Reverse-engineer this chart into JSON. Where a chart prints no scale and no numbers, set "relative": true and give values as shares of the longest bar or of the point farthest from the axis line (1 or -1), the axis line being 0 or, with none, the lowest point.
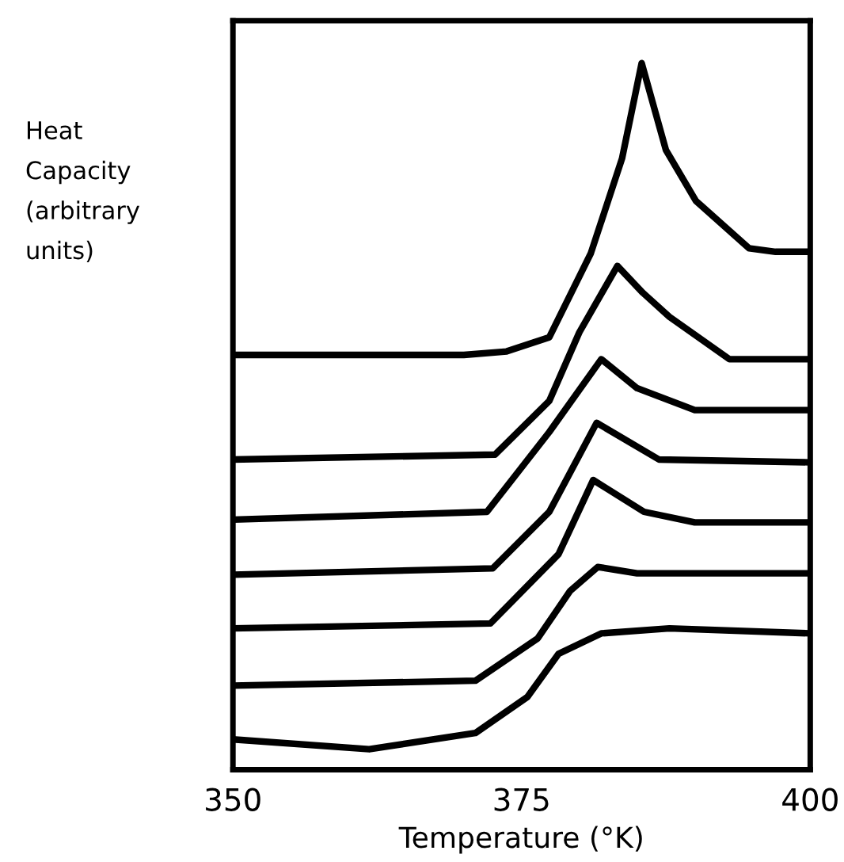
{
  "chart_data": {
    "type": "line",
    "relative": true,
    "xlabel": "Temperature (°K)",
    "ylabel": "Heat\nCapacity\n(arbitrary\nunits)",
    "xlim": [
      350,
      400
    ],
    "xticks": [
      350,
      375,
      400
    ],
    "tick_labels": "x",
    "grid": false,
    "legend": false,
    "marker": "none",
    "line_style": "solid",
    "series": [
      {
        "color": "#000000",
        "x": [
          350,
          370,
          373.7,
          377.4,
          381,
          383.7,
          385.4,
          387.5,
          390.1,
          394.7,
          397,
          400
        ],
        "values": [
          0.587,
          0.587,
          0.592,
          0.612,
          0.731,
          0.865,
          1.0,
          0.877,
          0.805,
          0.738,
          0.733,
          0.733
        ]
      },
      {
        "color": "#000000",
        "x": [
          350,
          372.7,
          377.4,
          380,
          383.3,
          385.5,
          387.8,
          393,
          400
        ],
        "values": [
          0.439,
          0.446,
          0.522,
          0.619,
          0.713,
          0.675,
          0.641,
          0.581,
          0.581
        ]
      },
      {
        "color": "#000000",
        "x": [
          350,
          372,
          377.4,
          381.9,
          385,
          390,
          400
        ],
        "values": [
          0.354,
          0.365,
          0.478,
          0.581,
          0.54,
          0.509,
          0.509
        ]
      },
      {
        "color": "#000000",
        "x": [
          350,
          372.5,
          377.4,
          381.5,
          386.9,
          400
        ],
        "values": [
          0.276,
          0.285,
          0.365,
          0.491,
          0.439,
          0.435
        ]
      },
      {
        "color": "#000000",
        "x": [
          350,
          372.3,
          378.2,
          381.2,
          385.6,
          390,
          400
        ],
        "values": [
          0.2,
          0.207,
          0.305,
          0.41,
          0.365,
          0.35,
          0.35
        ]
      },
      {
        "color": "#000000",
        "x": [
          350,
          371,
          376.4,
          379.2,
          381.6,
          385,
          400
        ],
        "values": [
          0.119,
          0.126,
          0.186,
          0.253,
          0.287,
          0.278,
          0.278
        ]
      },
      {
        "color": "#000000",
        "x": [
          350,
          361.8,
          371,
          375.5,
          378.2,
          381.9,
          387.8,
          400
        ],
        "values": [
          0.043,
          0.029,
          0.052,
          0.103,
          0.164,
          0.193,
          0.2,
          0.193
        ]
      }
    ]
  }
}
